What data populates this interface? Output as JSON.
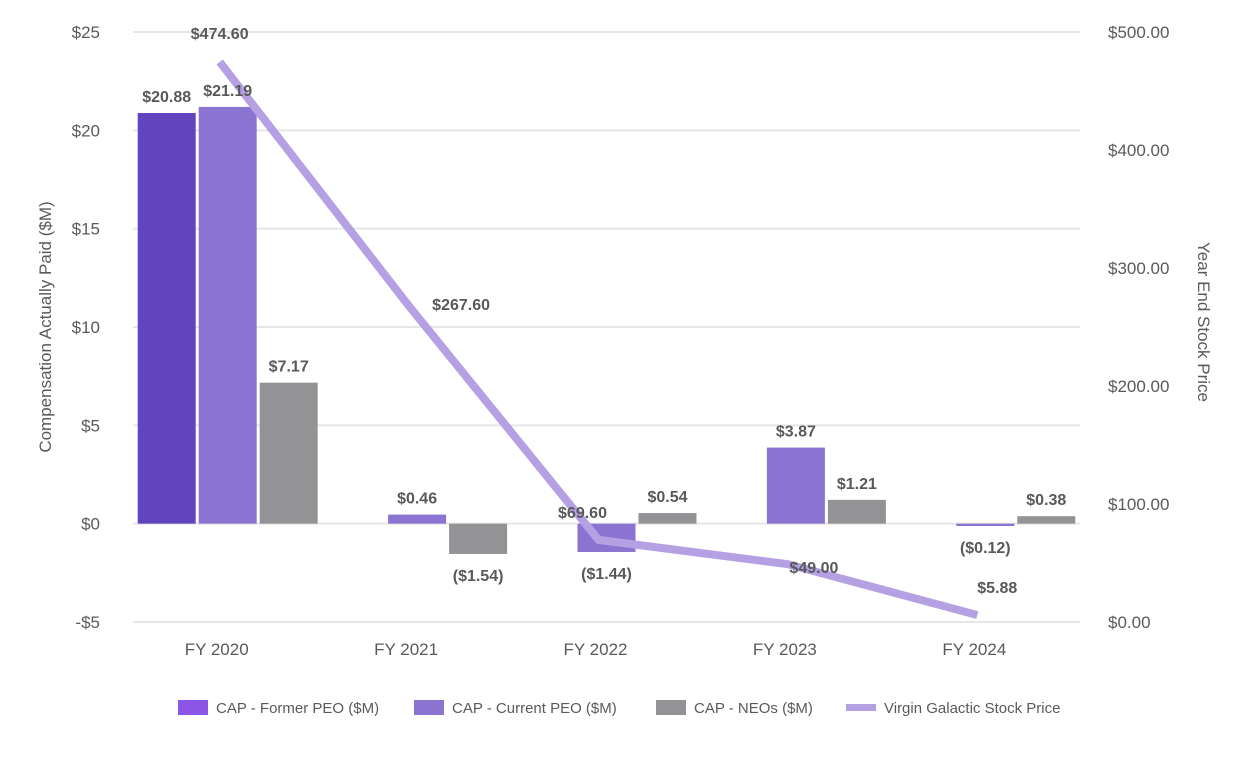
{
  "chart_data": {
    "type": "bar",
    "categories": [
      "FY 2020",
      "FY 2021",
      "FY 2022",
      "FY 2023",
      "FY 2024"
    ],
    "ylabel": "Compensation Actually Paid ($M)",
    "y2label": "Year End Stock Price",
    "ylim": [
      -5,
      25
    ],
    "y2lim": [
      0,
      500
    ],
    "yticks": [
      25,
      20,
      15,
      10,
      5,
      0,
      -5
    ],
    "ytick_labels": [
      "$25",
      "$20",
      "$15",
      "$10",
      "$5",
      "$0",
      "-$5"
    ],
    "y2ticks": [
      500,
      400,
      300,
      200,
      100,
      0
    ],
    "y2tick_labels": [
      "$500.00",
      "$400.00",
      "$300.00",
      "$200.00",
      "$100.00",
      "$0.00"
    ],
    "legend_position": "bottom",
    "series": [
      {
        "name": "CAP - Former PEO ($M)",
        "kind": "bar",
        "axis": "left",
        "color": "#6344bf",
        "legend_color": "#8b55e6",
        "values": [
          20.88,
          null,
          null,
          null,
          null
        ],
        "labels": [
          "$20.88",
          null,
          null,
          null,
          null
        ]
      },
      {
        "name": "CAP - Current  PEO ($M)",
        "kind": "bar",
        "axis": "left",
        "color": "#8b74d1",
        "legend_color": "#8b74d1",
        "values": [
          21.19,
          0.46,
          -1.44,
          3.87,
          -0.12
        ],
        "labels": [
          "$21.19",
          "$0.46",
          "($1.44)",
          "$3.87",
          "($0.12)"
        ]
      },
      {
        "name": "CAP - NEOs ($M)",
        "kind": "bar",
        "axis": "left",
        "color": "#939395",
        "legend_color": "#939395",
        "values": [
          7.17,
          -1.54,
          0.54,
          1.21,
          0.38
        ],
        "labels": [
          "$7.17",
          "($1.54)",
          "$0.54",
          "$1.21",
          "$0.38"
        ]
      },
      {
        "name": "Virgin Galactic Stock Price",
        "kind": "line",
        "axis": "right",
        "color": "#b4a0e3",
        "legend_color": "#b4a0e3",
        "values": [
          474.6,
          267.6,
          69.6,
          49.0,
          5.88
        ],
        "labels": [
          "$474.60",
          "$267.60",
          "$69.60",
          "$49.00",
          "$5.88"
        ]
      }
    ]
  }
}
